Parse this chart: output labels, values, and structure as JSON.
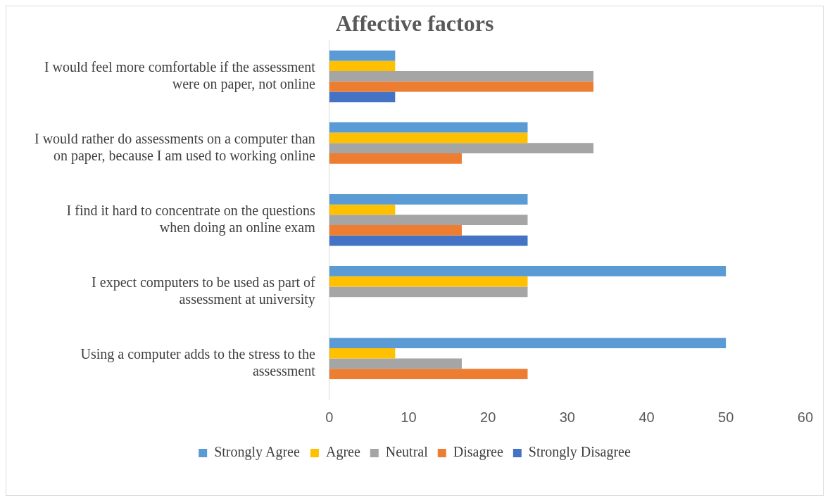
{
  "chart_data": {
    "type": "bar",
    "orientation": "horizontal",
    "title": "Affective factors",
    "categories": [
      "I would feel more comfortable if the assessment were on paper, not online",
      "I would rather do assessments on a computer than on paper, because I am used to working online",
      "I find it hard to concentrate on the questions when doing an online exam",
      "I expect computers to be used as part of assessment at university",
      "Using a computer adds to the stress to the assessment"
    ],
    "series": [
      {
        "name": "Strongly Agree",
        "color": "#5b9bd5",
        "values": [
          8.3,
          25,
          25,
          50,
          50
        ]
      },
      {
        "name": "Agree",
        "color": "#ffc000",
        "values": [
          8.3,
          25,
          8.3,
          25,
          8.3
        ]
      },
      {
        "name": "Neutral",
        "color": "#a5a5a5",
        "values": [
          33.3,
          33.3,
          25,
          25,
          16.7
        ]
      },
      {
        "name": "Disagree",
        "color": "#ed7d31",
        "values": [
          33.3,
          16.7,
          16.7,
          0,
          25
        ]
      },
      {
        "name": "Strongly Disagree",
        "color": "#4472c4",
        "values": [
          8.3,
          0,
          25,
          0,
          0
        ]
      }
    ],
    "xlim": [
      0,
      60
    ],
    "xticks": [
      0,
      10,
      20,
      30,
      40,
      50,
      60
    ],
    "grid": false,
    "legend": "bottom"
  }
}
